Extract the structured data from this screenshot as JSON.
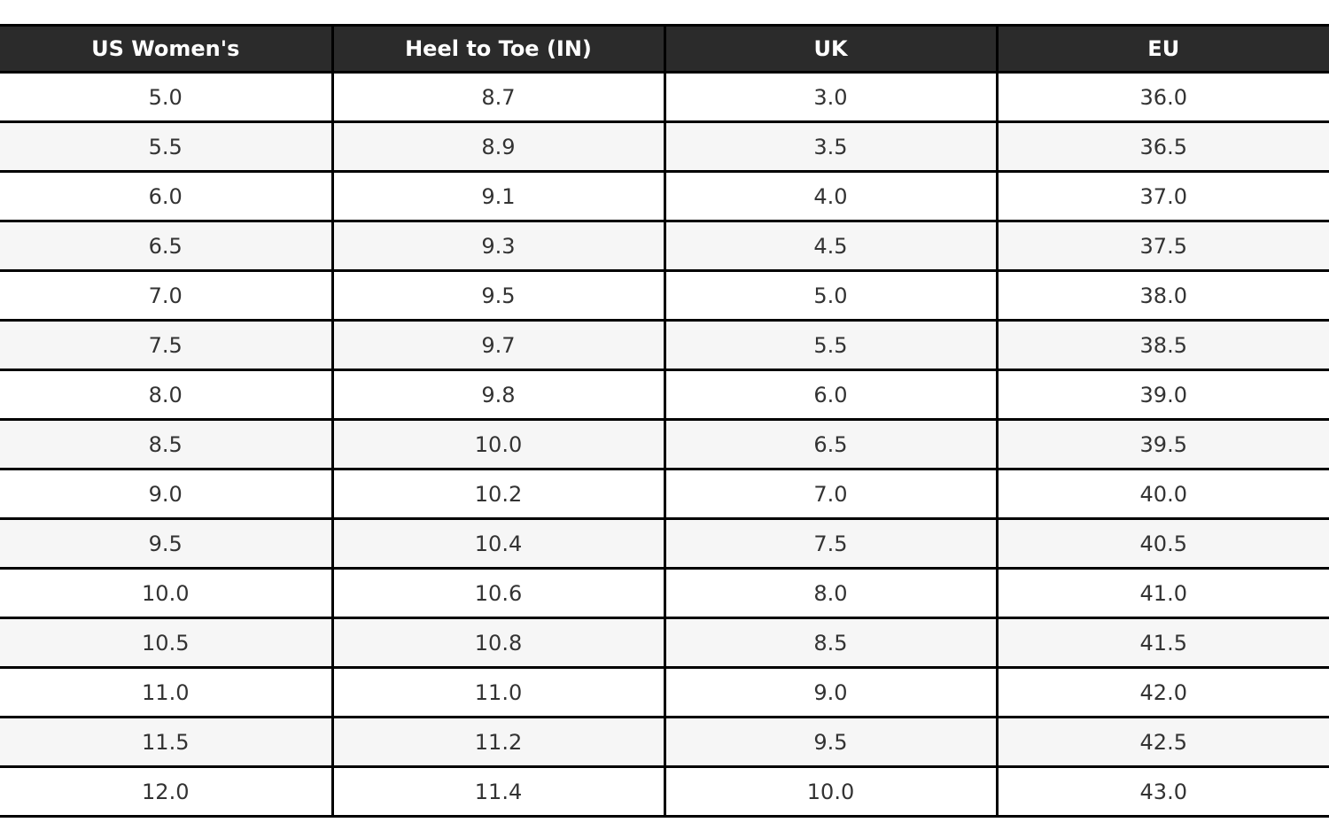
{
  "chart_data": {
    "type": "table",
    "title": "",
    "columns": [
      "US Women's",
      "Heel to Toe (IN)",
      "UK",
      "EU"
    ],
    "rows": [
      [
        "5.0",
        "8.7",
        "3.0",
        "36.0"
      ],
      [
        "5.5",
        "8.9",
        "3.5",
        "36.5"
      ],
      [
        "6.0",
        "9.1",
        "4.0",
        "37.0"
      ],
      [
        "6.5",
        "9.3",
        "4.5",
        "37.5"
      ],
      [
        "7.0",
        "9.5",
        "5.0",
        "38.0"
      ],
      [
        "7.5",
        "9.7",
        "5.5",
        "38.5"
      ],
      [
        "8.0",
        "9.8",
        "6.0",
        "39.0"
      ],
      [
        "8.5",
        "10.0",
        "6.5",
        "39.5"
      ],
      [
        "9.0",
        "10.2",
        "7.0",
        "40.0"
      ],
      [
        "9.5",
        "10.4",
        "7.5",
        "40.5"
      ],
      [
        "10.0",
        "10.6",
        "8.0",
        "41.0"
      ],
      [
        "10.5",
        "10.8",
        "8.5",
        "41.5"
      ],
      [
        "11.0",
        "11.0",
        "9.0",
        "42.0"
      ],
      [
        "11.5",
        "11.2",
        "9.5",
        "42.5"
      ],
      [
        "12.0",
        "11.4",
        "10.0",
        "43.0"
      ]
    ],
    "layout": {
      "grid": true,
      "column_widths_pct": [
        25,
        25,
        25,
        25
      ],
      "zebra_striping": true
    }
  },
  "colors": {
    "header_bg": "#2b2b2b",
    "header_text": "#ffffff",
    "row_bg": "#ffffff",
    "row_alt_bg": "#f6f6f6",
    "cell_text": "#333333",
    "border": "#000000",
    "page_bg": "#ffffff"
  }
}
